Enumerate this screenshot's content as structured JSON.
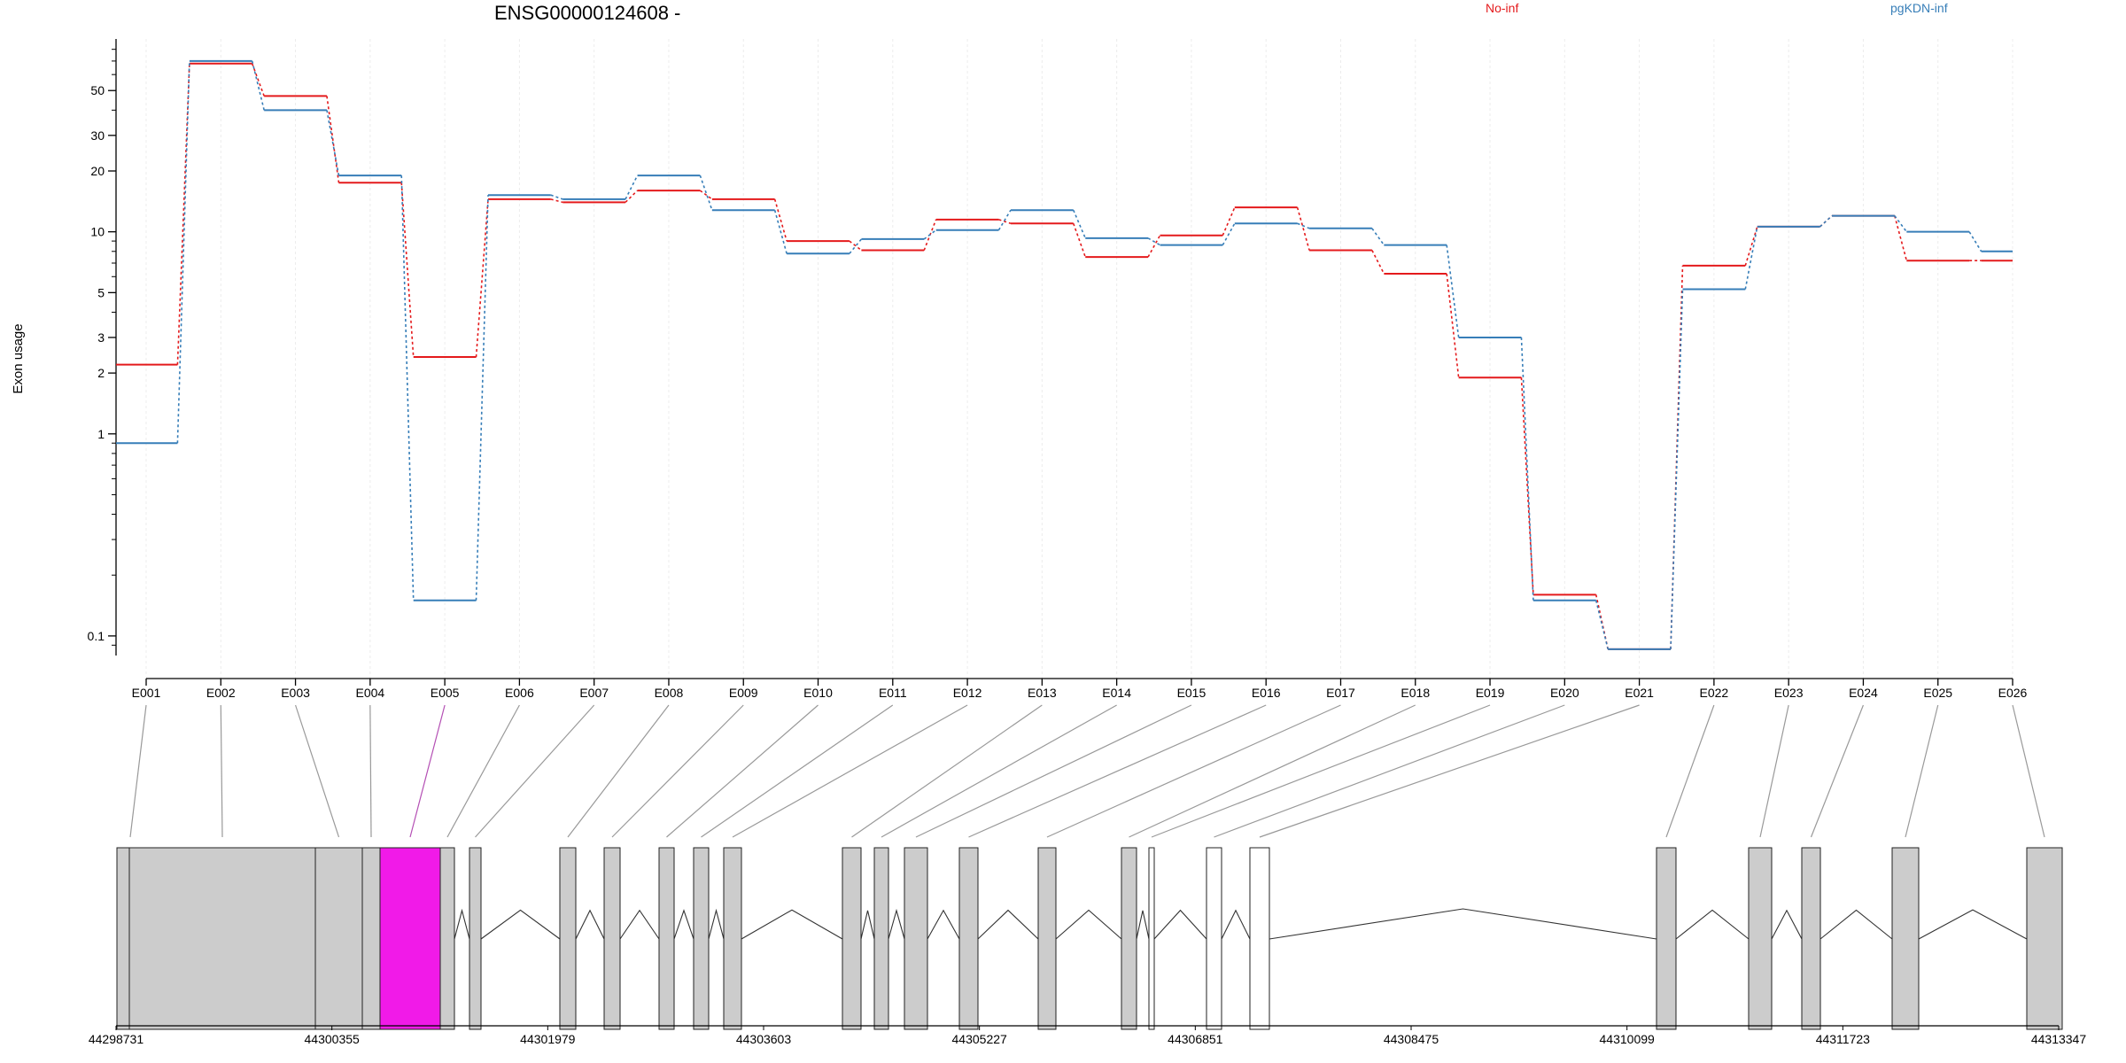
{
  "chart_data": {
    "type": "line",
    "title": "ENSG00000124608 -",
    "ylabel": "Exon usage",
    "xlabel": "",
    "y_scale": "log",
    "ylim": [
      0.08,
      90
    ],
    "y_ticks": [
      0.1,
      1,
      2,
      3,
      5,
      10,
      20,
      30,
      50
    ],
    "y_tick_labels": [
      "0.1",
      "1",
      "2",
      "3",
      "5",
      "10",
      "20",
      "30",
      "50"
    ],
    "grid": true,
    "legend_placement": "top",
    "categories": [
      "E001",
      "E002",
      "E003",
      "E004",
      "E005",
      "E006",
      "E007",
      "E008",
      "E009",
      "E010",
      "E011",
      "E012",
      "E013",
      "E014",
      "E015",
      "E016",
      "E017",
      "E018",
      "E019",
      "E020",
      "E021",
      "E022",
      "E023",
      "E024",
      "E025",
      "E026"
    ],
    "series": [
      {
        "name": "No-inf",
        "color": "#e41a1c",
        "values": [
          2.2,
          68,
          47,
          17.5,
          2.4,
          14.5,
          14.0,
          16.0,
          14.5,
          9.0,
          8.1,
          11.5,
          11.0,
          7.5,
          9.6,
          13.2,
          8.1,
          6.2,
          1.9,
          0.16,
          0.086,
          6.8,
          10.6,
          12.0,
          7.2,
          7.2
        ]
      },
      {
        "name": "pgKDN-inf",
        "color": "#377eb8",
        "values": [
          0.9,
          70,
          40,
          19.0,
          0.15,
          15.2,
          14.5,
          19.0,
          12.8,
          7.8,
          9.2,
          10.2,
          12.8,
          9.3,
          8.6,
          11.0,
          10.4,
          8.6,
          3.0,
          0.15,
          0.086,
          5.2,
          10.6,
          12.0,
          10.0,
          8.0
        ]
      }
    ],
    "gene_model": {
      "coordinate_labels": [
        "44298731",
        "44300355",
        "44301979",
        "44303603",
        "44305227",
        "44306851",
        "44308475",
        "44310099",
        "44311723",
        "44313347"
      ],
      "highlighted_exon": "E005",
      "highlight_color": "#f11ae8",
      "exon_fill": "#cccccc",
      "connector_color": "#999999",
      "highlight_connector_color": "#b44fb4"
    }
  }
}
